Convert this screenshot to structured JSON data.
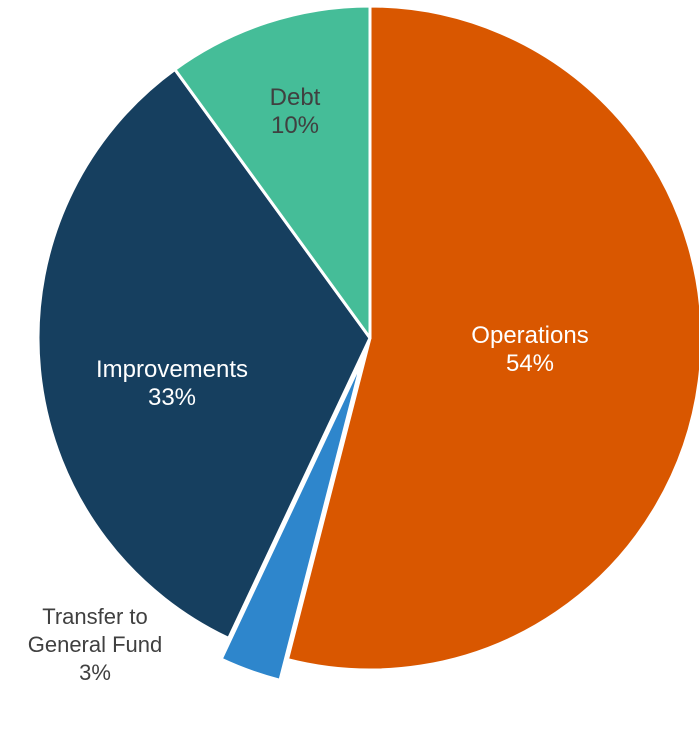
{
  "chart_data": {
    "type": "pie",
    "categories": [
      "Operations",
      "Transfer to General Fund",
      "Improvements",
      "Debt"
    ],
    "values": [
      54,
      3,
      33,
      10
    ],
    "value_labels": [
      "54%",
      "3%",
      "33%",
      "10%"
    ],
    "colors": [
      "#d95700",
      "#2e86cc",
      "#163f5f",
      "#45bd98"
    ],
    "label_colors": [
      "#ffffff",
      "#404040",
      "#ffffff",
      "#404040"
    ],
    "exploded": [
      false,
      true,
      false,
      false
    ]
  }
}
